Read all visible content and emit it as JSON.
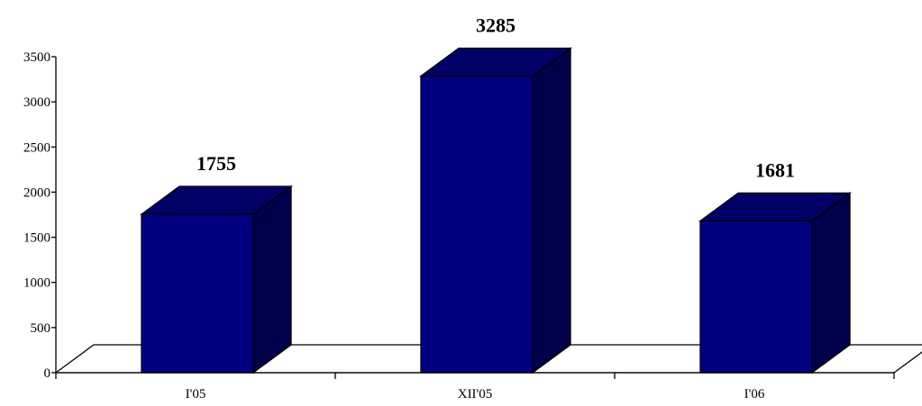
{
  "chart_data": {
    "type": "bar",
    "style": "3d-column",
    "categories": [
      "I'05",
      "XII'05",
      "I'06"
    ],
    "values": [
      1755,
      3285,
      1681
    ],
    "data_labels": [
      "1755",
      "3285",
      "1681"
    ],
    "title": "",
    "xlabel": "",
    "ylabel": "",
    "ylim": [
      0,
      3500
    ],
    "y_ticks": [
      0,
      500,
      1000,
      1500,
      2000,
      2500,
      3000,
      3500
    ],
    "y_tick_labels": [
      "0",
      "500",
      "1000",
      "1500",
      "2000",
      "2500",
      "3000",
      "3500"
    ],
    "grid": false,
    "legend": "none",
    "colors": {
      "bar_front": "#000080",
      "bar_top": "#000066",
      "bar_side": "#00004D",
      "axis": "#000000",
      "floor": "#ffffff"
    }
  }
}
